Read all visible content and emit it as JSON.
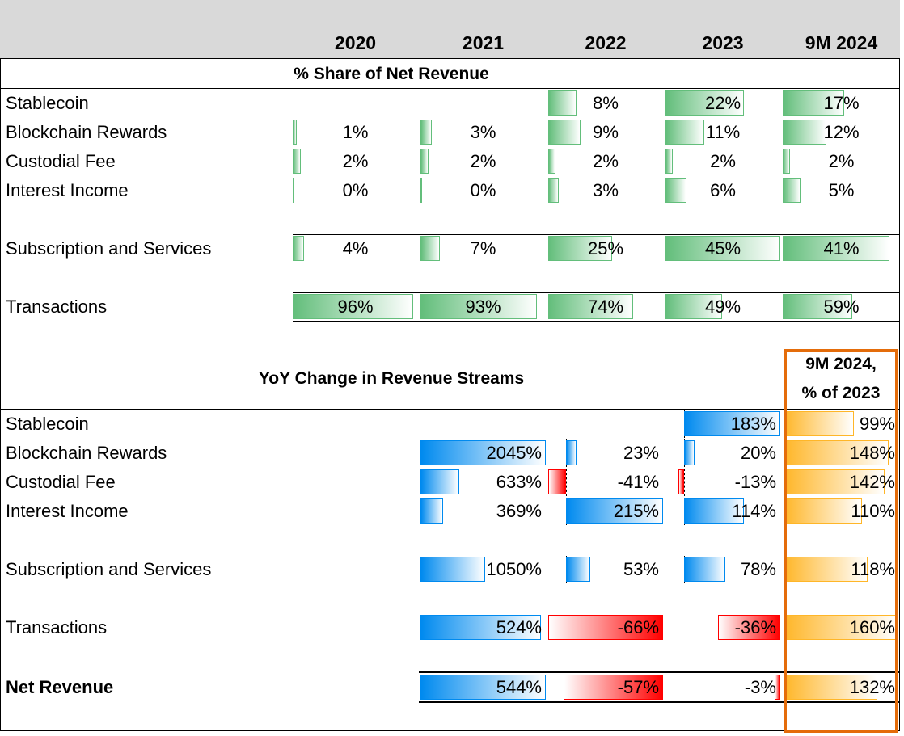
{
  "header": {
    "years": [
      "2020",
      "2021",
      "2022",
      "2023",
      "9M 2024"
    ]
  },
  "share": {
    "title": "% Share of Net Revenue",
    "rows": [
      {
        "label": "Stablecoin",
        "values": [
          "",
          "",
          "8%",
          "22%",
          "17%"
        ],
        "numbers": [
          null,
          null,
          8,
          22,
          17
        ]
      },
      {
        "label": "Blockchain Rewards",
        "values": [
          "1%",
          "3%",
          "9%",
          "11%",
          "12%"
        ],
        "numbers": [
          1,
          3,
          9,
          11,
          12
        ]
      },
      {
        "label": "Custodial Fee",
        "values": [
          "2%",
          "2%",
          "2%",
          "2%",
          "2%"
        ],
        "numbers": [
          2,
          2,
          2,
          2,
          2
        ]
      },
      {
        "label": "Interest Income",
        "values": [
          "0%",
          "0%",
          "3%",
          "6%",
          "5%"
        ],
        "numbers": [
          0,
          0,
          3,
          6,
          5
        ]
      },
      {
        "label": "Subscription and Services",
        "values": [
          "4%",
          "7%",
          "25%",
          "45%",
          "41%"
        ],
        "numbers": [
          4,
          7,
          25,
          45,
          41
        ]
      },
      {
        "label": "Transactions",
        "values": [
          "96%",
          "93%",
          "74%",
          "49%",
          "59%"
        ],
        "numbers": [
          96,
          93,
          74,
          49,
          59
        ]
      }
    ]
  },
  "yoy": {
    "title": "YoY Change in Revenue Streams",
    "ytd_header": [
      "9M 2024,",
      "% of 2023"
    ],
    "rows": [
      {
        "label": "Stablecoin",
        "values": [
          "",
          "",
          "183%"
        ],
        "numbers": [
          null,
          null,
          183
        ],
        "ytd": "99%",
        "ytd_number": 99
      },
      {
        "label": "Blockchain Rewards",
        "values": [
          "2045%",
          "23%",
          "20%"
        ],
        "numbers": [
          2045,
          23,
          20
        ],
        "ytd": "148%",
        "ytd_number": 148
      },
      {
        "label": "Custodial Fee",
        "values": [
          "633%",
          "-41%",
          "-13%"
        ],
        "numbers": [
          633,
          -41,
          -13
        ],
        "ytd": "142%",
        "ytd_number": 142
      },
      {
        "label": "Interest Income",
        "values": [
          "369%",
          "215%",
          "114%"
        ],
        "numbers": [
          369,
          215,
          114
        ],
        "ytd": "110%",
        "ytd_number": 110
      },
      {
        "label": "Subscription and Services",
        "values": [
          "1050%",
          "53%",
          "78%"
        ],
        "numbers": [
          1050,
          53,
          78
        ],
        "ytd": "118%",
        "ytd_number": 118
      },
      {
        "label": "Transactions",
        "values": [
          "524%",
          "-66%",
          "-36%"
        ],
        "numbers": [
          524,
          -66,
          -36
        ],
        "ytd": "160%",
        "ytd_number": 160
      },
      {
        "label": "Net Revenue",
        "values": [
          "544%",
          "-57%",
          "-3%"
        ],
        "numbers": [
          544,
          -57,
          -3
        ],
        "ytd": "132%",
        "ytd_number": 132,
        "bold": true
      }
    ]
  },
  "colors": {
    "share_bar": "#63be7b",
    "positive_bar": "#008aef",
    "negative_bar": "#ff0000",
    "ytd_bar": "#ffb628",
    "highlight_box": "#e46c0a",
    "header_bg": "#d9d9d9"
  }
}
